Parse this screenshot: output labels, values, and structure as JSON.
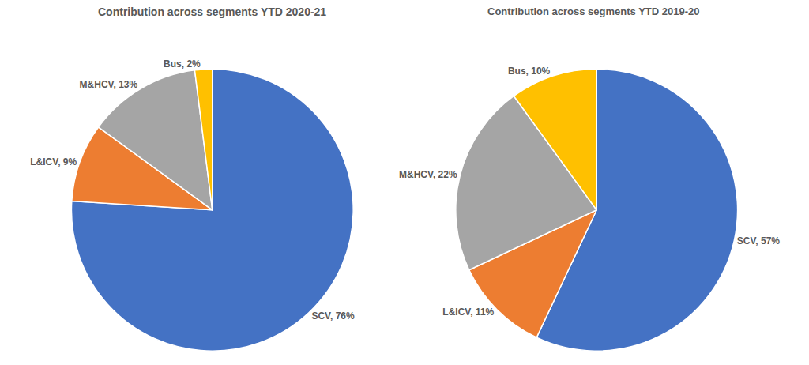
{
  "chart_data": [
    {
      "type": "pie",
      "title": "Contribution across segments YTD 2020-21",
      "categories": [
        "SCV",
        "L&ICV",
        "M&HCV",
        "Bus"
      ],
      "values": [
        76,
        9,
        13,
        2
      ],
      "value_labels": [
        "SCV, 76%",
        "L&ICV, 9%",
        "M&HCV, 13%",
        "Bus, 2%"
      ],
      "colors": [
        "#4472c4",
        "#ed7d31",
        "#a5a5a5",
        "#ffc000"
      ],
      "data_labels": true
    },
    {
      "type": "pie",
      "title": "Contribution across segments YTD 2019-20",
      "categories": [
        "SCV",
        "L&ICV",
        "M&HCV",
        "Bus"
      ],
      "values": [
        57,
        11,
        22,
        10
      ],
      "value_labels": [
        "SCV, 57%",
        "L&ICV, 11%",
        "M&HCV, 22%",
        "Bus, 10%"
      ],
      "colors": [
        "#4472c4",
        "#ed7d31",
        "#a5a5a5",
        "#ffc000"
      ],
      "data_labels": true
    }
  ]
}
